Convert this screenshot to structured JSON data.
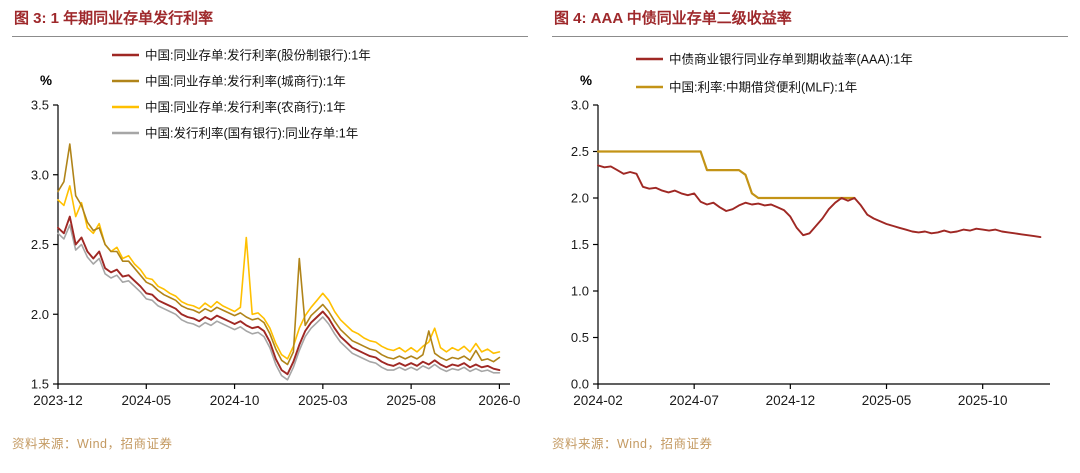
{
  "colors": {
    "title": "#9E282B",
    "source": "#C49A62",
    "rule": "#8C8C8C",
    "axis": "#000000"
  },
  "chart_data": [
    {
      "type": "line",
      "title": "图 3: 1 年期同业存单发行利率",
      "source": "资料来源：Wind，招商证券",
      "ylabel": "%",
      "ylim": [
        1.5,
        3.5
      ],
      "yticks": [
        1.5,
        2.0,
        2.5,
        3.0,
        3.5
      ],
      "ytick_labels": [
        "1.5",
        "2.0",
        "2.5",
        "3.0",
        "3.5"
      ],
      "xlim": [
        0,
        25.6
      ],
      "x_step": 0.33333,
      "x_unit": "months from 2023-12",
      "grid": false,
      "legend_position": "top-inside",
      "xticks": [
        {
          "t": 0,
          "label": "2023-12"
        },
        {
          "t": 5,
          "label": "2024-05"
        },
        {
          "t": 10,
          "label": "2024-10"
        },
        {
          "t": 15,
          "label": "2025-03"
        },
        {
          "t": 20,
          "label": "2025-08"
        },
        {
          "t": 25,
          "label": "2026-0"
        }
      ],
      "series": [
        {
          "name": "中国:同业存单:发行利率(股份制银行):1年",
          "color": "#9F2824",
          "width": 1.9,
          "values": [
            2.62,
            2.58,
            2.7,
            2.5,
            2.55,
            2.45,
            2.4,
            2.45,
            2.33,
            2.3,
            2.32,
            2.27,
            2.28,
            2.24,
            2.2,
            2.15,
            2.14,
            2.1,
            2.08,
            2.06,
            2.04,
            2.0,
            1.98,
            1.97,
            1.95,
            1.98,
            1.96,
            1.99,
            1.97,
            1.95,
            1.93,
            1.95,
            1.92,
            1.9,
            1.91,
            1.88,
            1.8,
            1.68,
            1.6,
            1.57,
            1.66,
            1.78,
            1.88,
            1.94,
            1.98,
            2.02,
            1.97,
            1.9,
            1.84,
            1.8,
            1.76,
            1.74,
            1.72,
            1.7,
            1.69,
            1.66,
            1.64,
            1.63,
            1.65,
            1.63,
            1.65,
            1.63,
            1.66,
            1.64,
            1.67,
            1.64,
            1.62,
            1.64,
            1.63,
            1.65,
            1.62,
            1.64,
            1.62,
            1.63,
            1.61,
            1.6
          ]
        },
        {
          "name": "中国:同业存单:发行利率(城商行):1年",
          "color": "#B08419",
          "width": 1.6,
          "values": [
            2.88,
            2.95,
            3.22,
            2.85,
            2.78,
            2.66,
            2.6,
            2.62,
            2.5,
            2.45,
            2.45,
            2.38,
            2.38,
            2.33,
            2.28,
            2.23,
            2.21,
            2.17,
            2.14,
            2.12,
            2.1,
            2.06,
            2.04,
            2.03,
            2.01,
            2.04,
            2.02,
            2.05,
            2.03,
            2.01,
            1.99,
            2.01,
            1.98,
            1.96,
            1.97,
            1.94,
            1.86,
            1.75,
            1.67,
            1.64,
            1.73,
            2.4,
            1.92,
            1.99,
            2.03,
            2.07,
            2.02,
            1.95,
            1.89,
            1.85,
            1.81,
            1.79,
            1.77,
            1.75,
            1.74,
            1.71,
            1.69,
            1.68,
            1.7,
            1.68,
            1.7,
            1.68,
            1.71,
            1.88,
            1.72,
            1.69,
            1.67,
            1.69,
            1.68,
            1.7,
            1.67,
            1.74,
            1.67,
            1.68,
            1.66,
            1.69
          ]
        },
        {
          "name": "中国:同业存单:发行利率(农商行):1年",
          "color": "#FFC000",
          "width": 1.6,
          "values": [
            2.82,
            2.78,
            2.92,
            2.7,
            2.8,
            2.62,
            2.58,
            2.65,
            2.5,
            2.45,
            2.48,
            2.4,
            2.42,
            2.36,
            2.32,
            2.26,
            2.25,
            2.2,
            2.18,
            2.15,
            2.13,
            2.09,
            2.07,
            2.06,
            2.04,
            2.08,
            2.05,
            2.09,
            2.06,
            2.04,
            2.02,
            2.05,
            2.55,
            2.0,
            2.01,
            1.97,
            1.9,
            1.79,
            1.71,
            1.68,
            1.77,
            1.9,
            1.99,
            2.05,
            2.1,
            2.15,
            2.1,
            2.02,
            1.96,
            1.92,
            1.88,
            1.86,
            1.83,
            1.81,
            1.8,
            1.77,
            1.75,
            1.74,
            1.76,
            1.73,
            1.76,
            1.73,
            1.77,
            1.8,
            1.9,
            1.76,
            1.73,
            1.76,
            1.74,
            1.77,
            1.73,
            1.79,
            1.73,
            1.75,
            1.72,
            1.73
          ]
        },
        {
          "name": "中国:发行利率(国有银行):同业存单:1年",
          "color": "#A6A6A6",
          "width": 1.6,
          "values": [
            2.58,
            2.54,
            2.64,
            2.46,
            2.5,
            2.41,
            2.36,
            2.4,
            2.29,
            2.26,
            2.28,
            2.23,
            2.24,
            2.2,
            2.16,
            2.11,
            2.1,
            2.06,
            2.04,
            2.02,
            2.0,
            1.96,
            1.94,
            1.93,
            1.91,
            1.94,
            1.92,
            1.95,
            1.93,
            1.91,
            1.89,
            1.91,
            1.88,
            1.86,
            1.87,
            1.84,
            1.76,
            1.64,
            1.56,
            1.53,
            1.62,
            1.74,
            1.84,
            1.9,
            1.94,
            1.98,
            1.93,
            1.86,
            1.8,
            1.76,
            1.72,
            1.7,
            1.68,
            1.66,
            1.65,
            1.62,
            1.6,
            1.6,
            1.62,
            1.6,
            1.62,
            1.6,
            1.63,
            1.61,
            1.64,
            1.61,
            1.59,
            1.61,
            1.6,
            1.62,
            1.59,
            1.61,
            1.59,
            1.6,
            1.58,
            1.58
          ]
        }
      ]
    },
    {
      "type": "line",
      "title": "图 4: AAA 中债同业存单二级收益率",
      "source": "资料来源：Wind，招商证券",
      "ylabel": "%",
      "ylim": [
        0.0,
        3.0
      ],
      "yticks": [
        0.0,
        0.5,
        1.0,
        1.5,
        2.0,
        2.5,
        3.0
      ],
      "ytick_labels": [
        "0.0",
        "0.5",
        "1.0",
        "1.5",
        "2.0",
        "2.5",
        "3.0"
      ],
      "xlim": [
        0,
        23.5
      ],
      "x_step": 0.33333,
      "x_unit": "months from 2024-02",
      "grid": false,
      "legend_position": "top-inside",
      "xticks": [
        {
          "t": 0,
          "label": "2024-02"
        },
        {
          "t": 5,
          "label": "2024-07"
        },
        {
          "t": 10,
          "label": "2024-12"
        },
        {
          "t": 15,
          "label": "2025-05"
        },
        {
          "t": 20,
          "label": "2025-10"
        }
      ],
      "series": [
        {
          "name": "中债商业银行同业存单到期收益率(AAA):1年",
          "color": "#9F2824",
          "width": 1.9,
          "values": [
            2.35,
            2.33,
            2.34,
            2.3,
            2.26,
            2.28,
            2.26,
            2.12,
            2.1,
            2.11,
            2.08,
            2.06,
            2.08,
            2.05,
            2.03,
            2.05,
            1.96,
            1.93,
            1.95,
            1.9,
            1.86,
            1.88,
            1.92,
            1.95,
            1.93,
            1.94,
            1.92,
            1.93,
            1.9,
            1.87,
            1.8,
            1.68,
            1.6,
            1.62,
            1.7,
            1.78,
            1.88,
            1.95,
            2.0,
            1.97,
            2.0,
            1.92,
            1.82,
            1.78,
            1.75,
            1.72,
            1.7,
            1.68,
            1.66,
            1.64,
            1.63,
            1.64,
            1.62,
            1.63,
            1.65,
            1.63,
            1.64,
            1.66,
            1.65,
            1.67,
            1.66,
            1.65,
            1.66,
            1.64,
            1.63,
            1.62,
            1.61,
            1.6,
            1.59,
            1.58
          ]
        },
        {
          "name": "中国:利率:中期借贷便利(MLF):1年",
          "color": "#C39316",
          "width": 2.2,
          "values": [
            2.5,
            2.5,
            2.5,
            2.5,
            2.5,
            2.5,
            2.5,
            2.5,
            2.5,
            2.5,
            2.5,
            2.5,
            2.5,
            2.5,
            2.5,
            2.5,
            2.5,
            2.3,
            2.3,
            2.3,
            2.3,
            2.3,
            2.3,
            2.25,
            2.05,
            2.0,
            2.0,
            2.0,
            2.0,
            2.0,
            2.0,
            2.0,
            2.0,
            2.0,
            2.0,
            2.0,
            2.0,
            2.0,
            2.0,
            2.0,
            2.0,
            null,
            null,
            null,
            null,
            null,
            null,
            null,
            null,
            null,
            null,
            null,
            null,
            null,
            null,
            null,
            null,
            null,
            null,
            null,
            null,
            null,
            null,
            null,
            null,
            null,
            null,
            null,
            null,
            null
          ]
        }
      ]
    }
  ]
}
